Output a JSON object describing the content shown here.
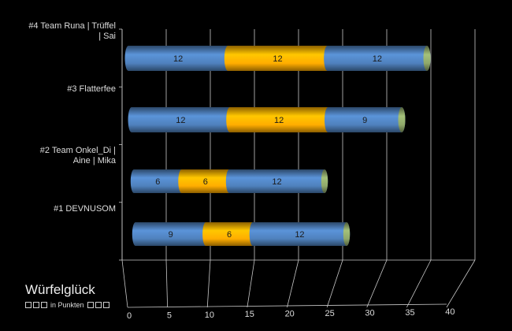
{
  "chart_data": {
    "type": "bar",
    "orientation": "horizontal",
    "stacked": true,
    "style": "3d-cylinder",
    "categories": [
      "#1 DEVNUSOM",
      "#2 Team Onkel_Di | Aine | Mika",
      "#3 Flatterfee",
      "#4 Team Runa | Trüffel | Sai"
    ],
    "category_lines": [
      [
        "#1 DEVNUSOM"
      ],
      [
        "#2 Team Onkel_Di |",
        "Aine | Mika"
      ],
      [
        "#3 Flatterfee"
      ],
      [
        "#4 Team Runa | Trüffel",
        "| Sai"
      ]
    ],
    "series": [
      {
        "values": [
          9,
          6,
          12,
          12
        ],
        "color": "#4f81bd"
      },
      {
        "values": [
          6,
          6,
          12,
          12
        ],
        "color": "#ffad00"
      },
      {
        "values": [
          12,
          12,
          9,
          12
        ],
        "color": "#4f81bd"
      }
    ],
    "xlim": [
      0,
      40
    ],
    "x_ticks": [
      0,
      5,
      10,
      15,
      20,
      25,
      30,
      35,
      40
    ],
    "grid": true,
    "background": "#000000",
    "gridline_color": "#c8c8c8",
    "end_cap_color": "#8fa86a"
  },
  "legend": {
    "title": "Würfelglück",
    "subtitle": "in Punkten"
  }
}
